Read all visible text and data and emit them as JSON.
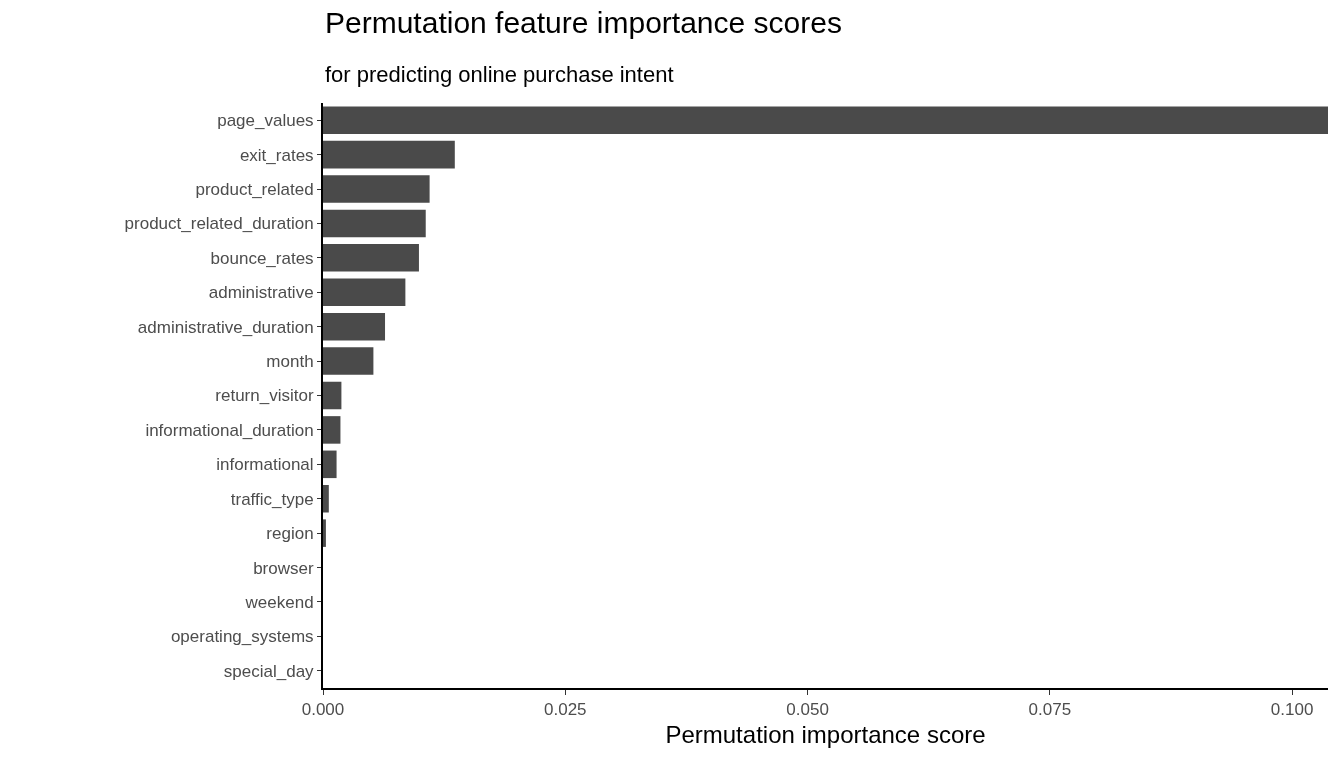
{
  "chart_data": {
    "type": "bar",
    "orientation": "horizontal",
    "title": "Permutation feature importance scores",
    "subtitle": "for predicting online purchase intent",
    "xlabel": "Permutation importance score",
    "categories": [
      "page_values",
      "exit_rates",
      "product_related",
      "product_related_duration",
      "bounce_rates",
      "administrative",
      "administrative_duration",
      "month",
      "return_visitor",
      "informational_duration",
      "informational",
      "traffic_type",
      "region",
      "browser",
      "weekend",
      "operating_systems",
      "special_day"
    ],
    "values": [
      0.1037,
      0.0136,
      0.011,
      0.0106,
      0.0099,
      0.0085,
      0.0064,
      0.0052,
      0.0019,
      0.0018,
      0.0014,
      0.0006,
      0.0003,
      0,
      0,
      0,
      0
    ],
    "color": "#4a4a4a",
    "xlim": [
      0,
      0.1037
    ],
    "xticks": [
      {
        "value": 0,
        "label": "0.000"
      },
      {
        "value": 0.025,
        "label": "0.025"
      },
      {
        "value": 0.05,
        "label": "0.050"
      },
      {
        "value": 0.075,
        "label": "0.075"
      },
      {
        "value": 0.1,
        "label": "0.100"
      }
    ],
    "legend": false
  }
}
